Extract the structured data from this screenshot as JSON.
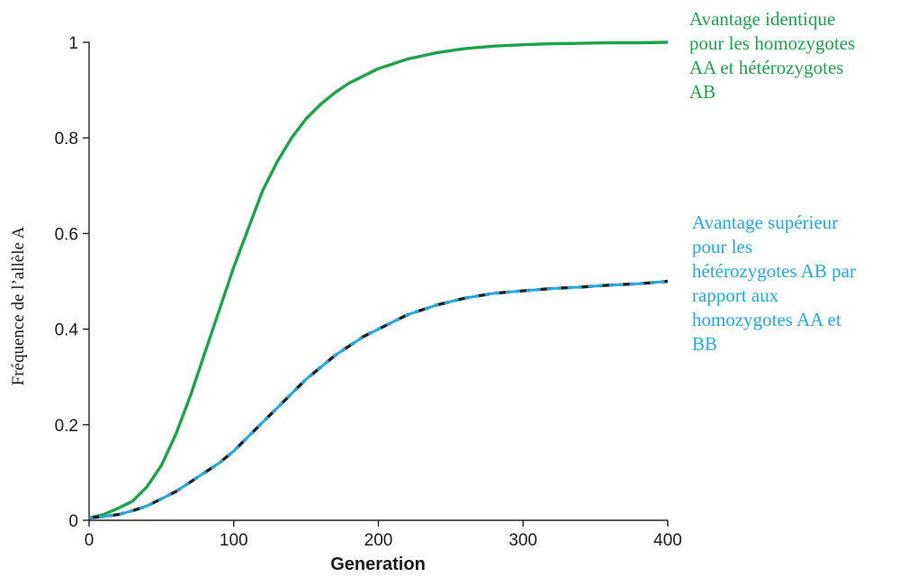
{
  "chart_data": {
    "type": "line",
    "title": "",
    "xlabel": "Generation",
    "ylabel": "Fréquence de l’allèle A",
    "xlim": [
      0,
      400
    ],
    "ylim": [
      0,
      1
    ],
    "grid": false,
    "x_ticks": [
      0,
      100,
      200,
      300,
      400
    ],
    "x_tick_labels": [
      "0",
      "100",
      "200",
      "300",
      "400"
    ],
    "y_ticks": [
      0,
      0.2,
      0.4,
      0.6,
      0.8,
      1
    ],
    "y_tick_labels": [
      "0",
      "0.2",
      "0.4",
      "0.6",
      "0.8",
      "1"
    ],
    "series": [
      {
        "color": "#1da44a",
        "style": "solid",
        "x": [
          0,
          10,
          20,
          30,
          40,
          50,
          60,
          70,
          80,
          90,
          100,
          110,
          120,
          130,
          140,
          150,
          160,
          170,
          180,
          190,
          200,
          220,
          240,
          260,
          280,
          300,
          320,
          340,
          360,
          380,
          400
        ],
        "y": [
          0.005,
          0.012,
          0.025,
          0.04,
          0.07,
          0.115,
          0.18,
          0.26,
          0.35,
          0.44,
          0.53,
          0.61,
          0.69,
          0.75,
          0.8,
          0.84,
          0.87,
          0.895,
          0.915,
          0.93,
          0.945,
          0.965,
          0.978,
          0.987,
          0.992,
          0.995,
          0.997,
          0.998,
          0.999,
          0.999,
          1.0
        ]
      },
      {
        "color": "#1f1f1f",
        "style": "dashed-under",
        "x": [
          0,
          10,
          20,
          30,
          40,
          50,
          60,
          70,
          80,
          90,
          100,
          110,
          120,
          130,
          140,
          150,
          160,
          170,
          180,
          190,
          200,
          220,
          240,
          260,
          280,
          300,
          320,
          340,
          360,
          380,
          400
        ],
        "y": [
          0.005,
          0.008,
          0.012,
          0.02,
          0.03,
          0.045,
          0.06,
          0.08,
          0.1,
          0.12,
          0.145,
          0.175,
          0.205,
          0.235,
          0.265,
          0.295,
          0.32,
          0.345,
          0.365,
          0.385,
          0.4,
          0.43,
          0.45,
          0.465,
          0.475,
          0.48,
          0.485,
          0.488,
          0.492,
          0.495,
          0.5
        ]
      },
      {
        "color": "#21a9e1",
        "style": "dashed",
        "x": [
          0,
          10,
          20,
          30,
          40,
          50,
          60,
          70,
          80,
          90,
          100,
          110,
          120,
          130,
          140,
          150,
          160,
          170,
          180,
          190,
          200,
          220,
          240,
          260,
          280,
          300,
          320,
          340,
          360,
          380,
          400
        ],
        "y": [
          0.005,
          0.008,
          0.012,
          0.02,
          0.03,
          0.045,
          0.06,
          0.08,
          0.1,
          0.12,
          0.145,
          0.175,
          0.205,
          0.235,
          0.265,
          0.295,
          0.32,
          0.345,
          0.365,
          0.385,
          0.4,
          0.43,
          0.45,
          0.465,
          0.475,
          0.48,
          0.485,
          0.488,
          0.492,
          0.495,
          0.5
        ]
      }
    ],
    "annotations": [
      {
        "text": "Avantage identique pour les homozygotes AA et hétérozygotes AB",
        "color": "#1da44a",
        "lines": [
          "Avantage identique",
          "pour les homozygotes",
          "AA et hétérozygotes",
          "AB"
        ]
      },
      {
        "text": "Avantage supérieur pour les hétérozygotes AB par rapport aux homozygotes AA et BB",
        "color": "#21a9e1",
        "lines": [
          "Avantage supérieur",
          "pour les",
          "hétérozygotes AB par",
          "rapport aux",
          "homozygotes AA et",
          "BB"
        ]
      }
    ]
  }
}
